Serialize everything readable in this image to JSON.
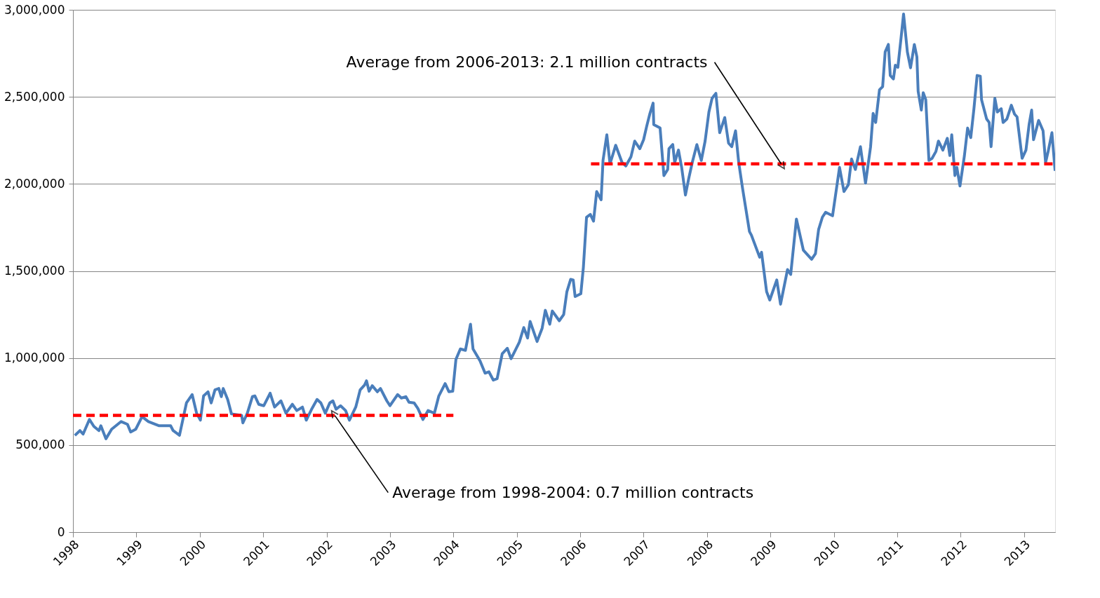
{
  "chart_data": {
    "type": "line",
    "xlim": [
      1998,
      2013.49
    ],
    "xticks": [
      1998,
      1999,
      2000,
      2001,
      2002,
      2003,
      2004,
      2005,
      2006,
      2007,
      2008,
      2009,
      2010,
      2011,
      2012,
      2013
    ],
    "ylim": [
      0,
      3000000
    ],
    "yticks": [
      0,
      {
        "value": 500000,
        "label": "500,000"
      },
      {
        "value": 1000000,
        "label": "1,000,000"
      },
      {
        "value": 1500000,
        "label": "1,500,000"
      },
      {
        "value": 2000000,
        "label": "2,000,000"
      },
      {
        "value": 2500000,
        "label": "2,500,000"
      },
      {
        "value": 3000000,
        "label": "3,000,000"
      }
    ],
    "grid": "y",
    "line_style": "solid",
    "series": [
      {
        "color": "#4a7ebb",
        "x": [
          1998.03,
          1998.11,
          1998.16,
          1998.26,
          1998.33,
          1998.41,
          1998.44,
          1998.52,
          1998.61,
          1998.76,
          1998.86,
          1998.91,
          1998.99,
          1999.09,
          1999.19,
          1999.36,
          1999.54,
          1999.58,
          1999.68,
          1999.79,
          1999.88,
          1999.95,
          2000.01,
          2000.06,
          2000.13,
          2000.18,
          2000.24,
          2000.3,
          2000.34,
          2000.37,
          2000.44,
          2000.5,
          2000.66,
          2000.68,
          2000.75,
          2000.83,
          2000.87,
          2000.93,
          2001.01,
          2001.11,
          2001.18,
          2001.28,
          2001.36,
          2001.46,
          2001.53,
          2001.62,
          2001.68,
          2001.77,
          2001.85,
          2001.91,
          2001.98,
          2002.05,
          2002.1,
          2002.15,
          2002.22,
          2002.3,
          2002.36,
          2002.46,
          2002.53,
          2002.6,
          2002.63,
          2002.67,
          2002.72,
          2002.8,
          2002.85,
          2002.95,
          2003.0,
          2003.12,
          2003.18,
          2003.25,
          2003.3,
          2003.38,
          2003.44,
          2003.52,
          2003.6,
          2003.7,
          2003.77,
          2003.87,
          2003.93,
          2003.99,
          2004.04,
          2004.11,
          2004.19,
          2004.27,
          2004.31,
          2004.42,
          2004.5,
          2004.56,
          2004.63,
          2004.69,
          2004.77,
          2004.85,
          2004.91,
          2005.04,
          2005.11,
          2005.17,
          2005.21,
          2005.32,
          2005.4,
          2005.45,
          2005.52,
          2005.56,
          2005.67,
          2005.74,
          2005.79,
          2005.85,
          2005.89,
          2005.92,
          2006.01,
          2006.05,
          2006.1,
          2006.16,
          2006.21,
          2006.26,
          2006.33,
          2006.36,
          2006.42,
          2006.47,
          2006.56,
          2006.66,
          2006.72,
          2006.8,
          2006.86,
          2006.94,
          2007.0,
          2007.05,
          2007.1,
          2007.15,
          2007.16,
          2007.26,
          2007.32,
          2007.38,
          2007.4,
          2007.46,
          2007.49,
          2007.55,
          2007.6,
          2007.66,
          2007.71,
          2007.77,
          2007.84,
          2007.91,
          2007.97,
          2008.03,
          2008.08,
          2008.14,
          2008.2,
          2008.28,
          2008.34,
          2008.39,
          2008.45,
          2008.5,
          2008.56,
          2008.67,
          2008.7,
          2008.83,
          2008.86,
          2008.94,
          2008.99,
          2009.1,
          2009.16,
          2009.27,
          2009.32,
          2009.41,
          2009.52,
          2009.65,
          2009.71,
          2009.76,
          2009.82,
          2009.87,
          2009.98,
          2010.04,
          2010.09,
          2010.16,
          2010.23,
          2010.28,
          2010.34,
          2010.42,
          2010.5,
          2010.58,
          2010.62,
          2010.66,
          2010.72,
          2010.77,
          2010.81,
          2010.86,
          2010.89,
          2010.94,
          2010.97,
          2011.01,
          2011.06,
          2011.1,
          2011.16,
          2011.21,
          2011.27,
          2011.31,
          2011.33,
          2011.38,
          2011.41,
          2011.45,
          2011.5,
          2011.55,
          2011.61,
          2011.65,
          2011.72,
          2011.79,
          2011.83,
          2011.86,
          2011.91,
          2011.94,
          2011.99,
          2012.06,
          2012.11,
          2012.16,
          2012.21,
          2012.26,
          2012.31,
          2012.33,
          2012.41,
          2012.45,
          2012.48,
          2012.54,
          2012.58,
          2012.64,
          2012.67,
          2012.73,
          2012.8,
          2012.85,
          2012.89,
          2012.97,
          2013.03,
          2013.08,
          2013.12,
          2013.15,
          2013.23,
          2013.3,
          2013.34,
          2013.38,
          2013.44,
          2013.49
        ],
        "values": [
          555000,
          583000,
          563000,
          647000,
          607000,
          583000,
          611000,
          536000,
          591000,
          635000,
          619000,
          575000,
          591000,
          663000,
          635000,
          611000,
          611000,
          583000,
          556000,
          742000,
          790000,
          683000,
          643000,
          782000,
          806000,
          742000,
          817000,
          825000,
          778000,
          825000,
          762000,
          679000,
          671000,
          627000,
          683000,
          778000,
          782000,
          734000,
          726000,
          798000,
          718000,
          754000,
          683000,
          734000,
          698000,
          718000,
          643000,
          710000,
          762000,
          742000,
          683000,
          742000,
          754000,
          706000,
          726000,
          698000,
          643000,
          718000,
          817000,
          845000,
          869000,
          809000,
          841000,
          806000,
          825000,
          754000,
          726000,
          790000,
          770000,
          778000,
          746000,
          742000,
          710000,
          647000,
          698000,
          683000,
          782000,
          853000,
          806000,
          809000,
          992000,
          1052000,
          1044000,
          1194000,
          1052000,
          984000,
          913000,
          921000,
          873000,
          881000,
          1024000,
          1056000,
          996000,
          1091000,
          1175000,
          1115000,
          1210000,
          1095000,
          1171000,
          1274000,
          1194000,
          1270000,
          1214000,
          1250000,
          1381000,
          1452000,
          1448000,
          1353000,
          1369000,
          1520000,
          1809000,
          1825000,
          1786000,
          1956000,
          1909000,
          2135000,
          2282000,
          2115000,
          2222000,
          2123000,
          2103000,
          2155000,
          2246000,
          2202000,
          2254000,
          2333000,
          2405000,
          2464000,
          2341000,
          2321000,
          2048000,
          2083000,
          2202000,
          2226000,
          2123000,
          2194000,
          2095000,
          1936000,
          2028000,
          2127000,
          2226000,
          2135000,
          2246000,
          2413000,
          2492000,
          2520000,
          2294000,
          2381000,
          2234000,
          2214000,
          2305000,
          2123000,
          1976000,
          1726000,
          1706000,
          1579000,
          1607000,
          1381000,
          1333000,
          1448000,
          1309000,
          1508000,
          1480000,
          1798000,
          1619000,
          1567000,
          1599000,
          1738000,
          1809000,
          1837000,
          1817000,
          1968000,
          2095000,
          1956000,
          1996000,
          2143000,
          2083000,
          2214000,
          2004000,
          2214000,
          2405000,
          2353000,
          2540000,
          2559000,
          2758000,
          2801000,
          2623000,
          2603000,
          2682000,
          2670000,
          2837000,
          2976000,
          2758000,
          2667000,
          2801000,
          2730000,
          2532000,
          2424000,
          2524000,
          2484000,
          2135000,
          2147000,
          2186000,
          2246000,
          2194000,
          2262000,
          2163000,
          2282000,
          2048000,
          2095000,
          1988000,
          2163000,
          2321000,
          2266000,
          2432000,
          2623000,
          2619000,
          2484000,
          2373000,
          2353000,
          2214000,
          2492000,
          2413000,
          2432000,
          2353000,
          2373000,
          2452000,
          2401000,
          2385000,
          2147000,
          2194000,
          2341000,
          2424000,
          2254000,
          2365000,
          2305000,
          2123000,
          2186000,
          2294000,
          2075000
        ]
      },
      {
        "color": "#ff0000",
        "line_style": "dashed",
        "x": [
          1998,
          2004
        ],
        "values": [
          670000,
          670000
        ]
      },
      {
        "color": "#ff0000",
        "line_style": "dashed",
        "x": [
          2006.17,
          2013.49
        ],
        "values": [
          2115000,
          2115000
        ]
      }
    ],
    "annotations": [
      {
        "text": "Average from 2006-2013: 2.1 million contracts",
        "x": 2009.17,
        "y": 2115000
      },
      {
        "text": "Average from 1998-2004: 0.7 million contracts",
        "x": 2002.13,
        "y": 670000
      }
    ]
  }
}
